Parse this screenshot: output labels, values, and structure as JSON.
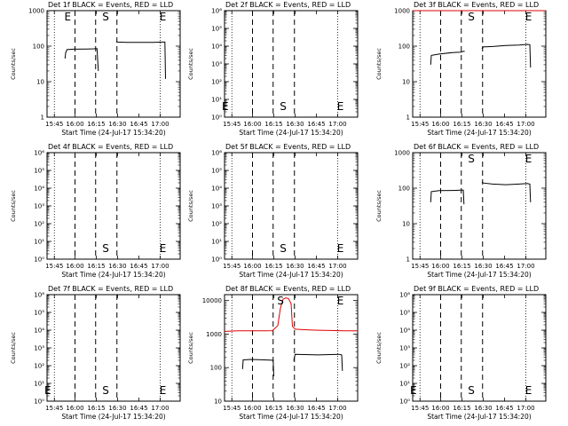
{
  "chart_data": [
    {
      "type": "line",
      "title": "Det 1f BLACK = Events, RED = LLD",
      "xlabel": "Start Time (24-Jul-17 15:34:20)",
      "ylabel": "Counts/sec",
      "yscale": "log",
      "ylim": [
        1,
        1000
      ],
      "ytick_labels": [
        "1",
        "10",
        "100",
        "1000"
      ],
      "xtick_labels": [
        "15:45",
        "16:00",
        "16:15",
        "16:30",
        "16:45",
        "17:00"
      ],
      "markers": [
        {
          "label": "E",
          "t": 15.5
        },
        {
          "label": "S",
          "t": 44
        },
        {
          "label": "E",
          "t": 87
        }
      ],
      "series": [
        {
          "name": "BLACK = Events",
          "color": "#000000",
          "points": [
            [
              13.5,
              45
            ],
            [
              14,
              65
            ],
            [
              15,
              80
            ],
            [
              20,
              82
            ],
            [
              30,
              83
            ],
            [
              35,
              84
            ],
            [
              37.5,
              85
            ],
            [
              38.5,
              20
            ]
          ]
        },
        {
          "name": "BLACK = Events",
          "color": "#000000",
          "points": [
            [
              52,
              135
            ],
            [
              53,
              130
            ],
            [
              60,
              128
            ],
            [
              70,
              127
            ],
            [
              80,
              128
            ],
            [
              86,
              130
            ],
            [
              88.5,
              130
            ],
            [
              89,
              12
            ]
          ]
        }
      ]
    },
    {
      "type": "line",
      "title": "Det 2f BLACK = Events, RED = LLD",
      "xlabel": "Start Time (24-Jul-17 15:34:20)",
      "ylabel": "Counts/sec",
      "yscale": "log",
      "ylim": [
        1,
        1000000
      ],
      "ytick_labels": [
        "10⁰",
        "10¹",
        "10²",
        "10³",
        "10⁴",
        "10⁵",
        "10⁶"
      ],
      "xtick_labels": [
        "15:45",
        "16:00",
        "16:15",
        "16:30",
        "16:45",
        "17:00"
      ],
      "markers": [
        {
          "label": "E",
          "t": 0.5
        },
        {
          "label": "S",
          "t": 44
        },
        {
          "label": "E",
          "t": 87
        }
      ],
      "series": []
    },
    {
      "type": "line",
      "title": "Det 3f BLACK = Events, RED = LLD",
      "xlabel": "Start Time (24-Jul-17 15:34:20)",
      "ylabel": "Counts/sec",
      "yscale": "log",
      "ylim": [
        1,
        1000
      ],
      "ytick_labels": [
        "1",
        "10",
        "100",
        "1000"
      ],
      "xtick_labels": [
        "15:45",
        "16:00",
        "16:15",
        "16:30",
        "16:45",
        "17:00"
      ],
      "markers": [
        {
          "label": "S",
          "t": 44
        },
        {
          "label": "E",
          "t": 87
        }
      ],
      "series": [
        {
          "name": "BLACK = Events",
          "color": "#000000",
          "points": [
            [
              13.5,
              30
            ],
            [
              14,
              55
            ],
            [
              20,
              60
            ],
            [
              30,
              66
            ],
            [
              36,
              68
            ],
            [
              38.5,
              72
            ],
            [
              39,
              70
            ]
          ]
        },
        {
          "name": "BLACK = Events",
          "color": "#000000",
          "points": [
            [
              52,
              85
            ],
            [
              53,
              95
            ],
            [
              60,
              98
            ],
            [
              70,
              105
            ],
            [
              80,
              108
            ],
            [
              86,
              112
            ],
            [
              88,
              110
            ],
            [
              88.5,
              25
            ]
          ]
        },
        {
          "name": "RED = LLD",
          "color": "#dd0000",
          "points": [
            [
              0,
              1000
            ],
            [
              100,
              1000
            ]
          ]
        }
      ]
    },
    {
      "type": "line",
      "title": "Det 4f BLACK = Events, RED = LLD",
      "xlabel": "Start Time (24-Jul-17 15:34:20)",
      "ylabel": "Counts/sec",
      "yscale": "log",
      "ylim": [
        1,
        1000000
      ],
      "ytick_labels": [
        "10⁰",
        "10¹",
        "10²",
        "10³",
        "10⁴",
        "10⁵",
        "10⁶"
      ],
      "xtick_labels": [
        "15:45",
        "16:00",
        "16:15",
        "16:30",
        "16:45",
        "17:00"
      ],
      "markers": [
        {
          "label": "S",
          "t": 44
        },
        {
          "label": "E",
          "t": 87
        }
      ],
      "series": []
    },
    {
      "type": "line",
      "title": "Det 5f BLACK = Events, RED = LLD",
      "xlabel": "Start Time (24-Jul-17 15:34:20)",
      "ylabel": "Counts/sec",
      "yscale": "log",
      "ylim": [
        1,
        1000000
      ],
      "ytick_labels": [
        "10⁰",
        "10¹",
        "10²",
        "10³",
        "10⁴",
        "10⁵",
        "10⁶"
      ],
      "xtick_labels": [
        "15:45",
        "16:00",
        "16:15",
        "16:30",
        "16:45",
        "17:00"
      ],
      "markers": [
        {
          "label": "S",
          "t": 44
        },
        {
          "label": "E",
          "t": 87
        }
      ],
      "series": []
    },
    {
      "type": "line",
      "title": "Det 6f BLACK = Events, RED = LLD",
      "xlabel": "Start Time (24-Jul-17 15:34:20)",
      "ylabel": "Counts/sec",
      "yscale": "log",
      "ylim": [
        1,
        1000
      ],
      "ytick_labels": [
        "1",
        "10",
        "100",
        "1000"
      ],
      "xtick_labels": [
        "15:45",
        "16:00",
        "16:15",
        "16:30",
        "16:45",
        "17:00"
      ],
      "markers": [
        {
          "label": "S",
          "t": 44
        },
        {
          "label": "E",
          "t": 87
        }
      ],
      "series": [
        {
          "name": "BLACK = Events",
          "color": "#000000",
          "points": [
            [
              13.5,
              40
            ],
            [
              14,
              80
            ],
            [
              20,
              85
            ],
            [
              30,
              86
            ],
            [
              36,
              88
            ],
            [
              38,
              88
            ],
            [
              38.5,
              35
            ]
          ]
        },
        {
          "name": "BLACK = Events",
          "color": "#000000",
          "points": [
            [
              52,
              150
            ],
            [
              53,
              140
            ],
            [
              60,
              130
            ],
            [
              70,
              125
            ],
            [
              80,
              130
            ],
            [
              86,
              135
            ],
            [
              88,
              130
            ],
            [
              88.5,
              40
            ]
          ]
        }
      ]
    },
    {
      "type": "line",
      "title": "Det 7f BLACK = Events, RED = LLD",
      "xlabel": "Start Time (24-Jul-17 15:34:20)",
      "ylabel": "Counts/sec",
      "yscale": "log",
      "ylim": [
        1,
        1000000
      ],
      "ytick_labels": [
        "10⁰",
        "10¹",
        "10²",
        "10³",
        "10⁴",
        "10⁵",
        "10⁶"
      ],
      "xtick_labels": [
        "15:45",
        "16:00",
        "16:15",
        "16:30",
        "16:45",
        "17:00"
      ],
      "markers": [
        {
          "label": "E",
          "t": 0.5
        },
        {
          "label": "S",
          "t": 44
        },
        {
          "label": "E",
          "t": 87
        }
      ],
      "series": []
    },
    {
      "type": "line",
      "title": "Det 8f BLACK = Events, RED = LLD",
      "xlabel": "Start Time (24-Jul-17 15:34:20)",
      "ylabel": "Counts/sec",
      "yscale": "log",
      "ylim": [
        10,
        15000
      ],
      "ytick_labels": [
        "10",
        "100",
        "1000",
        "10000"
      ],
      "xtick_labels": [
        "15:45",
        "16:00",
        "16:15",
        "16:30",
        "16:45",
        "17:00"
      ],
      "markers": [
        {
          "label": "S",
          "t": 42
        },
        {
          "label": "E",
          "t": 87
        }
      ],
      "series": [
        {
          "name": "BLACK = Events",
          "color": "#000000",
          "points": [
            [
              13.5,
              90
            ],
            [
              14,
              170
            ],
            [
              20,
              175
            ],
            [
              30,
              170
            ],
            [
              34,
              168
            ],
            [
              36.5,
              165
            ],
            [
              37,
              55
            ]
          ]
        },
        {
          "name": "BLACK = Events",
          "color": "#000000",
          "points": [
            [
              52,
              160
            ],
            [
              53,
              250
            ],
            [
              60,
              245
            ],
            [
              70,
              240
            ],
            [
              80,
              245
            ],
            [
              86,
              250
            ],
            [
              88,
              240
            ],
            [
              88.5,
              80
            ]
          ]
        },
        {
          "name": "RED = LLD",
          "color": "#dd0000",
          "points": [
            [
              0,
              1200
            ],
            [
              10,
              1250
            ],
            [
              20,
              1250
            ],
            [
              30,
              1250
            ],
            [
              36,
              1260
            ],
            [
              40,
              1800
            ],
            [
              42,
              6000
            ],
            [
              44,
              11000
            ],
            [
              46,
              12000
            ],
            [
              48,
              11500
            ],
            [
              50,
              8000
            ],
            [
              51,
              1700
            ],
            [
              53,
              1400
            ],
            [
              60,
              1350
            ],
            [
              70,
              1300
            ],
            [
              80,
              1280
            ],
            [
              90,
              1250
            ],
            [
              100,
              1250
            ]
          ]
        }
      ]
    },
    {
      "type": "line",
      "title": "Det 9f BLACK = Events, RED = LLD",
      "xlabel": "Start Time (24-Jul-17 15:34:20)",
      "ylabel": "Counts/sec",
      "yscale": "log",
      "ylim": [
        1,
        1000000
      ],
      "ytick_labels": [
        "10⁰",
        "10¹",
        "10²",
        "10³",
        "10⁴",
        "10⁵",
        "10⁶"
      ],
      "xtick_labels": [
        "15:45",
        "16:00",
        "16:15",
        "16:30",
        "16:45",
        "17:00"
      ],
      "markers": [
        {
          "label": "E",
          "t": 0.5
        },
        {
          "label": "S",
          "t": 44
        },
        {
          "label": "E",
          "t": 87
        }
      ],
      "series": []
    }
  ],
  "shared_axes": {
    "x_tick_t": [
      5.5,
      21,
      37,
      53,
      69,
      85
    ],
    "dotted_lines_t": [
      5.5,
      85
    ],
    "dashed_lines_t": [
      21,
      36.5,
      52.5
    ]
  }
}
